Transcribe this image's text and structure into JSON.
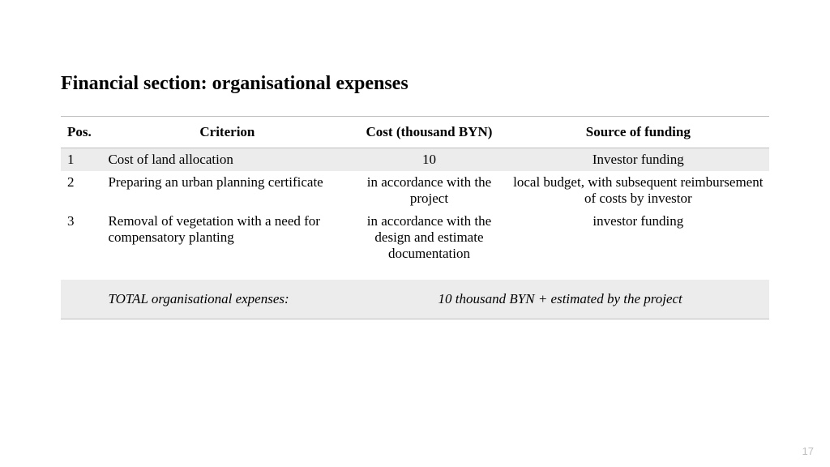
{
  "title": "Financial section: organisational expenses",
  "table": {
    "type": "table",
    "background_color": "#ffffff",
    "zebra_color": "#ececec",
    "border_color": "#bfbfbf",
    "header_fontsize": 17,
    "body_fontsize": 17,
    "columns": [
      {
        "key": "pos",
        "label": "Pos.",
        "align": "left",
        "width_pct": 6
      },
      {
        "key": "criterion",
        "label": "Criterion",
        "align_header": "center",
        "align_body": "left",
        "width_pct": 35
      },
      {
        "key": "cost",
        "label": "Cost (thousand BYN)",
        "align": "center",
        "width_pct": 22
      },
      {
        "key": "source",
        "label": "Source of funding",
        "align": "center",
        "width_pct": 37
      }
    ],
    "rows": [
      {
        "pos": "1",
        "criterion": "Cost of land allocation",
        "cost": "10",
        "source": "Investor funding",
        "shaded": true
      },
      {
        "pos": "2",
        "criterion": "Preparing an urban planning certificate",
        "cost": "in accordance with the project",
        "source": "local budget, with subsequent reimbursement of costs by investor",
        "shaded": false
      },
      {
        "pos": "3",
        "criterion": "Removal of vegetation with a need for compensatory planting",
        "cost": "in accordance with the design and estimate documentation",
        "source": "investor funding",
        "shaded": false
      }
    ],
    "total": {
      "label": "TOTAL organisational expenses:",
      "value": "10 thousand BYN + estimated by the project",
      "shaded": true,
      "italic": true
    }
  },
  "page_number": "17",
  "page_number_color": "#bfbfbf"
}
